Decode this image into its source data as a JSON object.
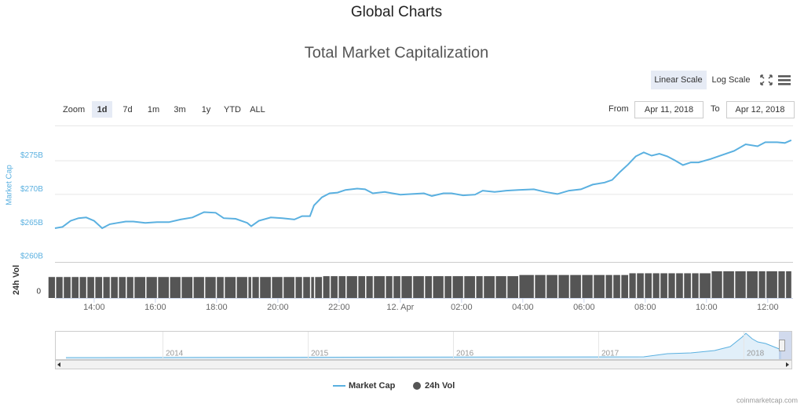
{
  "page_title": "Global Charts",
  "chart_data": {
    "type": "line",
    "title": "Total Market Capitalization",
    "scale_buttons": [
      "Linear Scale",
      "Log Scale"
    ],
    "zoom_label": "Zoom",
    "zoom_buttons": [
      "1d",
      "7d",
      "1m",
      "3m",
      "1y",
      "YTD",
      "ALL"
    ],
    "range_from_label": "From",
    "range_from": "Apr 11, 2018",
    "range_to_label": "To",
    "range_to": "Apr 12, 2018",
    "x": [
      12.72,
      12.97,
      13.23,
      13.49,
      13.74,
      14,
      14.26,
      14.51,
      14.77,
      15.03,
      15.28,
      15.67,
      16.05,
      16.44,
      16.82,
      17.21,
      17.59,
      17.97,
      18.23,
      18.62,
      19.0,
      19.13,
      19.38,
      19.77,
      20.15,
      20.54,
      20.79,
      21.05,
      21.18,
      21.44,
      21.69,
      21.95,
      22.21,
      22.59,
      22.85,
      23.1,
      23.49,
      23.74,
      24.0,
      24.38,
      24.77,
      25.03,
      25.41,
      25.67,
      26.05,
      26.44,
      26.69,
      27.08,
      27.46,
      27.85,
      28.36,
      28.74,
      29.13,
      29.51,
      29.9,
      30.28,
      30.67,
      30.92,
      31.18,
      31.44,
      31.69,
      31.95,
      32.21,
      32.46,
      32.72,
      32.97,
      33.23,
      33.49,
      33.74,
      34.13,
      34.51,
      34.9,
      35.28,
      35.67,
      35.92,
      36.31,
      36.56,
      36.77
    ],
    "xlim": [
      12.72,
      36.8
    ],
    "xticks": [
      {
        "value": 14,
        "label": "14:00"
      },
      {
        "value": 16,
        "label": "16:00"
      },
      {
        "value": 18,
        "label": "18:00"
      },
      {
        "value": 20,
        "label": "20:00"
      },
      {
        "value": 22,
        "label": "22:00"
      },
      {
        "value": 24,
        "label": "12. Apr"
      },
      {
        "value": 26,
        "label": "02:00"
      },
      {
        "value": 28,
        "label": "04:00"
      },
      {
        "value": 30,
        "label": "06:00"
      },
      {
        "value": 32,
        "label": "08:00"
      },
      {
        "value": 34,
        "label": "10:00"
      },
      {
        "value": 36,
        "label": "12:00"
      }
    ],
    "y_label": "Market Cap",
    "ylim": [
      260,
      280.2
    ],
    "yticks": [
      {
        "value": 260,
        "label": "$260B"
      },
      {
        "value": 265,
        "label": "$265B"
      },
      {
        "value": 270,
        "label": "$270B"
      },
      {
        "value": 275,
        "label": "$275B"
      }
    ],
    "y2_label": "24h Vol",
    "y2lim": [
      0,
      12
    ],
    "y2ticks": [
      0
    ],
    "grid": true,
    "series": [
      {
        "name": "Market Cap",
        "color": "#5ab0e0",
        "values": [
          264.9,
          265.1,
          266.0,
          266.4,
          266.5,
          266.0,
          264.9,
          265.5,
          265.7,
          265.9,
          265.9,
          265.7,
          265.8,
          265.8,
          266.2,
          266.5,
          267.3,
          267.2,
          266.4,
          266.3,
          265.7,
          265.2,
          266.0,
          266.5,
          266.4,
          266.2,
          266.7,
          266.7,
          268.3,
          269.5,
          270.1,
          270.2,
          270.6,
          270.8,
          270.7,
          270.1,
          270.3,
          270.1,
          269.9,
          270.0,
          270.1,
          269.7,
          270.1,
          270.1,
          269.8,
          269.9,
          270.5,
          270.3,
          270.5,
          270.6,
          270.7,
          270.3,
          270.0,
          270.5,
          270.7,
          271.4,
          271.7,
          272.1,
          273.3,
          274.4,
          275.6,
          276.2,
          275.7,
          276.0,
          275.6,
          275.0,
          274.3,
          274.7,
          274.7,
          275.2,
          275.8,
          276.4,
          277.4,
          277.1,
          277.7,
          277.7,
          277.6,
          278.0
        ]
      },
      {
        "name": "24h Vol",
        "color": "#555555",
        "axis": "y2",
        "values": [
          7.3,
          7.3,
          7.3,
          7.3,
          7.3,
          7.3,
          7.3,
          7.3,
          7.3,
          7.3,
          7.3,
          7.3,
          7.3,
          7.3,
          7.3,
          7.3,
          7.3,
          7.3,
          7.3,
          7.3,
          7.3,
          7.3,
          7.3,
          7.3,
          7.3,
          7.3,
          7.3,
          7.3,
          7.3,
          7.3,
          7.6,
          7.6,
          7.6,
          7.6,
          7.6,
          7.6,
          7.6,
          7.6,
          7.6,
          7.6,
          7.6,
          7.6,
          7.6,
          7.6,
          7.6,
          7.6,
          7.6,
          7.6,
          7.6,
          7.6,
          8.0,
          8.0,
          8.0,
          8.0,
          8.0,
          8.0,
          8.0,
          8.0,
          8.0,
          8.0,
          8.6,
          8.6,
          8.6,
          8.6,
          8.6,
          8.6,
          8.6,
          8.6,
          8.6,
          8.6,
          9.3,
          9.3,
          9.3,
          9.3,
          9.3,
          9.3,
          9.3,
          9.3
        ]
      }
    ],
    "navigator_labels": [
      "2014",
      "2015",
      "2016",
      "2017",
      "2018"
    ],
    "credits": "coinmarketcap.com"
  }
}
